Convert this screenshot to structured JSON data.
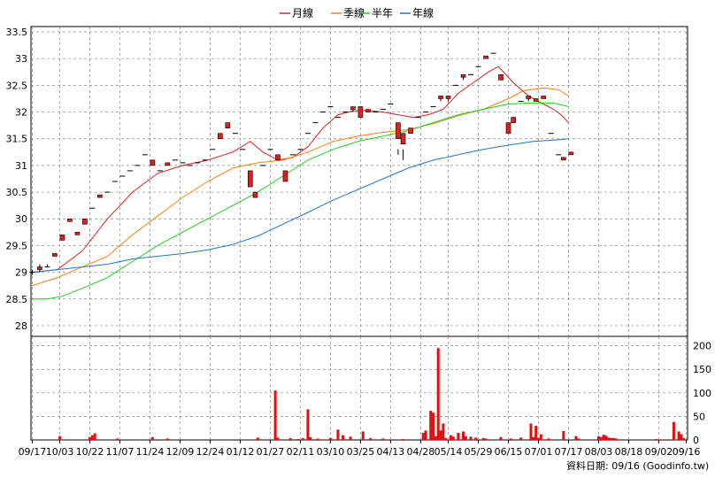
{
  "legend": [
    {
      "label": "月線",
      "color": "#e02020"
    },
    {
      "label": "季線",
      "color": "#ff7f0e"
    },
    {
      "label": "半年",
      "color": "#22cc22"
    },
    {
      "label": "年線",
      "color": "#1f77d0"
    }
  ],
  "source_text": "資料日期: 09/16  (Goodinfo.tw)",
  "chart_data": [
    {
      "type": "candlestick",
      "ylim": [
        27.8,
        33.6
      ],
      "y_ticks": [
        28,
        28.5,
        29,
        29.5,
        30,
        30.5,
        31,
        31.5,
        32,
        32.5,
        33,
        33.5
      ],
      "x_tick_labels": [
        "09/17",
        "10/03",
        "10/22",
        "11/07",
        "11/24",
        "12/09",
        "12/24",
        "01/12",
        "01/27",
        "02/11",
        "03/10",
        "03/25",
        "04/13",
        "04/28",
        "05/14",
        "05/29",
        "06/15",
        "07/01",
        "07/17",
        "08/03",
        "08/18",
        "09/02",
        "09/16"
      ],
      "x_tick_index": [
        0,
        11,
        23,
        35,
        47,
        59,
        71,
        83,
        95,
        107,
        119,
        131,
        143,
        155,
        166,
        178,
        190,
        202,
        214,
        226,
        238,
        250,
        261
      ],
      "x_count": 262,
      "candles": [
        [
          0,
          29.0,
          29.0,
          28.95,
          29.05
        ],
        [
          3,
          29.05,
          29.1,
          29.0,
          29.15
        ],
        [
          6,
          29.1,
          29.1,
          29.1,
          29.15
        ],
        [
          9,
          29.3,
          29.35,
          29.3,
          29.35
        ],
        [
          12,
          29.6,
          29.7,
          29.6,
          29.7
        ],
        [
          15,
          29.95,
          30.0,
          29.95,
          30.0
        ],
        [
          18,
          29.7,
          29.75,
          29.7,
          29.75
        ],
        [
          21,
          29.9,
          30.0,
          29.9,
          30.0
        ],
        [
          24,
          30.2,
          30.2,
          30.2,
          30.2
        ],
        [
          27,
          30.4,
          30.45,
          30.4,
          30.45
        ],
        [
          30,
          30.5,
          30.5,
          30.5,
          30.5
        ],
        [
          33,
          30.7,
          30.7,
          30.7,
          30.7
        ],
        [
          36,
          30.8,
          30.8,
          30.8,
          30.8
        ],
        [
          39,
          30.9,
          30.9,
          30.9,
          30.9
        ],
        [
          42,
          31.0,
          31.0,
          31.0,
          31.0
        ],
        [
          45,
          31.2,
          31.2,
          31.2,
          31.2
        ],
        [
          48,
          31.0,
          31.1,
          31.0,
          31.1
        ],
        [
          51,
          30.9,
          30.9,
          30.9,
          30.9
        ],
        [
          54,
          31.0,
          31.05,
          31.0,
          31.05
        ],
        [
          57,
          31.1,
          31.1,
          31.1,
          31.1
        ],
        [
          60,
          31.05,
          31.05,
          31.05,
          31.05
        ],
        [
          63,
          31.0,
          31.0,
          31.0,
          31.0
        ],
        [
          66,
          31.05,
          31.05,
          31.05,
          31.05
        ],
        [
          69,
          31.1,
          31.1,
          31.1,
          31.1
        ],
        [
          72,
          31.3,
          31.3,
          31.3,
          31.3
        ],
        [
          75,
          31.5,
          31.6,
          31.5,
          31.6
        ],
        [
          78,
          31.7,
          31.8,
          31.7,
          31.8
        ],
        [
          81,
          31.6,
          31.6,
          31.6,
          31.6
        ],
        [
          84,
          31.3,
          31.3,
          31.3,
          31.3
        ],
        [
          87,
          30.6,
          30.9,
          30.6,
          30.9
        ],
        [
          89,
          30.4,
          30.5,
          30.4,
          30.5
        ],
        [
          92,
          31.0,
          31.0,
          31.0,
          31.0
        ],
        [
          95,
          31.3,
          31.3,
          31.3,
          31.3
        ],
        [
          98,
          31.1,
          31.2,
          31.1,
          31.2
        ],
        [
          101,
          30.7,
          30.9,
          30.7,
          30.9
        ],
        [
          104,
          31.2,
          31.2,
          31.2,
          31.2
        ],
        [
          107,
          31.3,
          31.3,
          31.3,
          31.3
        ],
        [
          110,
          31.6,
          31.6,
          31.6,
          31.6
        ],
        [
          113,
          31.8,
          31.8,
          31.8,
          31.8
        ],
        [
          116,
          32.0,
          32.0,
          32.0,
          32.0
        ],
        [
          119,
          32.1,
          32.1,
          32.1,
          32.1
        ],
        [
          122,
          31.9,
          31.9,
          31.9,
          31.9
        ],
        [
          125,
          32.0,
          32.0,
          32.0,
          32.0
        ],
        [
          128,
          32.05,
          32.1,
          32.0,
          32.1
        ],
        [
          131,
          31.9,
          32.1,
          31.9,
          32.1
        ],
        [
          134,
          32.0,
          32.05,
          32.0,
          32.05
        ],
        [
          137,
          32.0,
          32.0,
          32.0,
          32.0
        ],
        [
          140,
          32.05,
          32.05,
          32.05,
          32.05
        ],
        [
          143,
          32.15,
          32.15,
          32.15,
          32.15
        ],
        [
          146,
          31.5,
          31.8,
          31.2,
          31.3
        ],
        [
          148,
          31.4,
          31.6,
          31.1,
          31.3
        ],
        [
          151,
          31.6,
          31.7,
          31.6,
          31.7
        ],
        [
          154,
          31.9,
          31.9,
          31.9,
          31.9
        ],
        [
          157,
          32.0,
          32.0,
          32.0,
          32.0
        ],
        [
          160,
          32.1,
          32.1,
          32.1,
          32.1
        ],
        [
          163,
          32.25,
          32.3,
          32.2,
          32.3
        ],
        [
          166,
          32.25,
          32.3,
          32.2,
          32.3
        ],
        [
          169,
          32.5,
          32.5,
          32.5,
          32.5
        ],
        [
          172,
          32.65,
          32.7,
          32.6,
          32.7
        ],
        [
          175,
          32.7,
          32.7,
          32.7,
          32.7
        ],
        [
          178,
          32.85,
          32.85,
          32.85,
          32.85
        ],
        [
          181,
          33.0,
          33.05,
          33.0,
          33.05
        ],
        [
          184,
          33.1,
          33.1,
          33.1,
          33.1
        ],
        [
          187,
          32.6,
          32.7,
          32.6,
          32.7
        ],
        [
          190,
          31.6,
          31.8,
          31.6,
          31.8
        ],
        [
          192,
          31.8,
          31.9,
          31.8,
          31.9
        ],
        [
          195,
          32.2,
          32.2,
          32.2,
          32.2
        ],
        [
          198,
          32.25,
          32.3,
          32.2,
          32.3
        ],
        [
          201,
          32.2,
          32.25,
          32.2,
          32.25
        ],
        [
          204,
          32.25,
          32.3,
          32.25,
          32.3
        ],
        [
          207,
          31.6,
          31.6,
          31.6,
          31.6
        ],
        [
          210,
          31.2,
          31.2,
          31.1,
          31.1
        ],
        [
          212,
          31.1,
          31.15,
          31.1,
          31.15
        ],
        [
          215,
          31.2,
          31.25,
          31.2,
          31.25
        ]
      ],
      "ma_month": [
        [
          0,
          29.0
        ],
        [
          10,
          29.05
        ],
        [
          20,
          29.4
        ],
        [
          30,
          30.0
        ],
        [
          40,
          30.5
        ],
        [
          50,
          30.85
        ],
        [
          60,
          31.0
        ],
        [
          70,
          31.1
        ],
        [
          80,
          31.25
        ],
        [
          87,
          31.45
        ],
        [
          92,
          31.25
        ],
        [
          98,
          31.1
        ],
        [
          104,
          31.15
        ],
        [
          110,
          31.35
        ],
        [
          116,
          31.7
        ],
        [
          122,
          31.95
        ],
        [
          128,
          32.02
        ],
        [
          134,
          32.03
        ],
        [
          140,
          32.0
        ],
        [
          146,
          31.95
        ],
        [
          152,
          31.9
        ],
        [
          158,
          31.95
        ],
        [
          164,
          32.05
        ],
        [
          170,
          32.35
        ],
        [
          176,
          32.55
        ],
        [
          182,
          32.75
        ],
        [
          186,
          32.85
        ],
        [
          192,
          32.55
        ],
        [
          198,
          32.3
        ],
        [
          204,
          32.15
        ],
        [
          208,
          32.05
        ],
        [
          211,
          31.95
        ],
        [
          214,
          31.8
        ]
      ],
      "ma_quarter": [
        [
          0,
          28.75
        ],
        [
          10,
          28.9
        ],
        [
          20,
          29.1
        ],
        [
          30,
          29.3
        ],
        [
          40,
          29.7
        ],
        [
          50,
          30.05
        ],
        [
          60,
          30.4
        ],
        [
          70,
          30.7
        ],
        [
          80,
          30.95
        ],
        [
          90,
          31.05
        ],
        [
          100,
          31.1
        ],
        [
          110,
          31.25
        ],
        [
          120,
          31.45
        ],
        [
          130,
          31.55
        ],
        [
          140,
          31.62
        ],
        [
          150,
          31.67
        ],
        [
          160,
          31.78
        ],
        [
          170,
          31.93
        ],
        [
          180,
          32.05
        ],
        [
          190,
          32.25
        ],
        [
          196,
          32.4
        ],
        [
          204,
          32.45
        ],
        [
          210,
          32.42
        ],
        [
          214,
          32.3
        ]
      ],
      "ma_half": [
        [
          0,
          28.5
        ],
        [
          6,
          28.5
        ],
        [
          12,
          28.55
        ],
        [
          20,
          28.7
        ],
        [
          30,
          28.9
        ],
        [
          40,
          29.2
        ],
        [
          50,
          29.5
        ],
        [
          60,
          29.75
        ],
        [
          70,
          30.0
        ],
        [
          80,
          30.25
        ],
        [
          90,
          30.5
        ],
        [
          100,
          30.8
        ],
        [
          110,
          31.1
        ],
        [
          120,
          31.3
        ],
        [
          130,
          31.45
        ],
        [
          140,
          31.55
        ],
        [
          150,
          31.65
        ],
        [
          160,
          31.8
        ],
        [
          170,
          31.95
        ],
        [
          180,
          32.05
        ],
        [
          190,
          32.15
        ],
        [
          200,
          32.17
        ],
        [
          208,
          32.17
        ],
        [
          214,
          32.1
        ]
      ],
      "ma_year": [
        [
          0,
          29.0
        ],
        [
          10,
          29.05
        ],
        [
          20,
          29.1
        ],
        [
          30,
          29.15
        ],
        [
          40,
          29.25
        ],
        [
          50,
          29.3
        ],
        [
          60,
          29.35
        ],
        [
          70,
          29.42
        ],
        [
          80,
          29.52
        ],
        [
          90,
          29.68
        ],
        [
          100,
          29.9
        ],
        [
          110,
          30.12
        ],
        [
          120,
          30.35
        ],
        [
          130,
          30.55
        ],
        [
          140,
          30.75
        ],
        [
          150,
          30.95
        ],
        [
          160,
          31.1
        ],
        [
          170,
          31.2
        ],
        [
          180,
          31.3
        ],
        [
          190,
          31.38
        ],
        [
          200,
          31.45
        ],
        [
          210,
          31.48
        ],
        [
          214,
          31.5
        ]
      ]
    },
    {
      "type": "bar",
      "ylim": [
        0,
        220
      ],
      "y_ticks": [
        0,
        50,
        100,
        150,
        200
      ],
      "x_count": 262,
      "volume": [
        [
          11,
          8
        ],
        [
          23,
          6
        ],
        [
          24,
          10
        ],
        [
          25,
          14
        ],
        [
          34,
          3
        ],
        [
          48,
          6
        ],
        [
          54,
          3
        ],
        [
          90,
          5
        ],
        [
          97,
          105
        ],
        [
          98,
          5
        ],
        [
          103,
          4
        ],
        [
          106,
          2
        ],
        [
          108,
          4
        ],
        [
          110,
          65
        ],
        [
          111,
          6
        ],
        [
          114,
          3
        ],
        [
          119,
          4
        ],
        [
          122,
          22
        ],
        [
          124,
          10
        ],
        [
          127,
          7
        ],
        [
          132,
          18
        ],
        [
          135,
          4
        ],
        [
          140,
          3
        ],
        [
          148,
          2
        ],
        [
          156,
          15
        ],
        [
          157,
          20
        ],
        [
          159,
          62
        ],
        [
          160,
          58
        ],
        [
          161,
          8
        ],
        [
          162,
          195
        ],
        [
          163,
          20
        ],
        [
          164,
          35
        ],
        [
          165,
          4
        ],
        [
          167,
          10
        ],
        [
          168,
          7
        ],
        [
          170,
          15
        ],
        [
          172,
          18
        ],
        [
          173,
          8
        ],
        [
          175,
          7
        ],
        [
          177,
          5
        ],
        [
          180,
          4
        ],
        [
          181,
          3
        ],
        [
          187,
          6
        ],
        [
          191,
          3
        ],
        [
          195,
          5
        ],
        [
          199,
          35
        ],
        [
          200,
          6
        ],
        [
          201,
          30
        ],
        [
          202,
          4
        ],
        [
          203,
          12
        ],
        [
          206,
          3
        ],
        [
          212,
          19
        ],
        [
          217,
          8
        ],
        [
          218,
          3
        ],
        [
          226,
          8
        ],
        [
          227,
          6
        ],
        [
          228,
          11
        ],
        [
          229,
          9
        ],
        [
          230,
          5
        ],
        [
          231,
          4
        ],
        [
          232,
          4
        ],
        [
          233,
          3
        ],
        [
          249,
          2
        ],
        [
          256,
          38
        ],
        [
          258,
          18
        ],
        [
          259,
          12
        ],
        [
          260,
          4
        ]
      ]
    }
  ]
}
